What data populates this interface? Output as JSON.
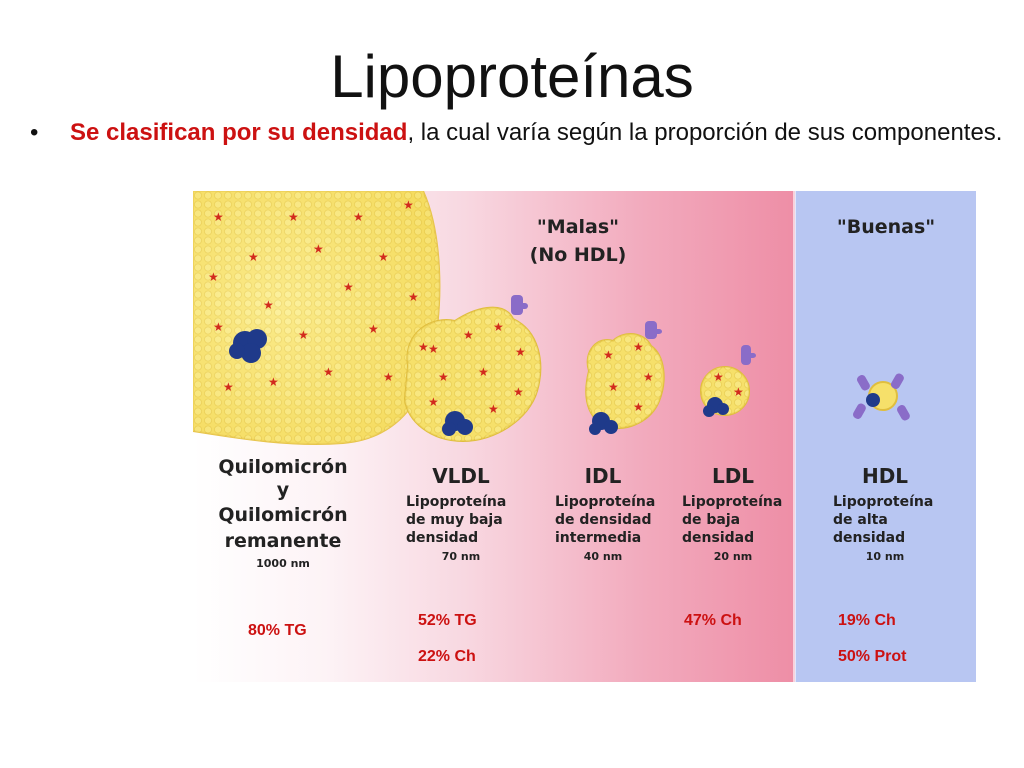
{
  "slide": {
    "title": "Lipoproteínas",
    "bullet_marker": "•",
    "bullet_bold": "Se clasifican por su densidad",
    "bullet_rest": ", la cual varía según la proporción de sus componentes."
  },
  "figure": {
    "header_bad_line1": "\"Malas\"",
    "header_bad_line2": "(No HDL)",
    "header_good": "\"Buenas\"",
    "quilo": {
      "line1": "Quilomicrón",
      "line2": "y",
      "line3": "Quilomicrón",
      "line4": "remanente",
      "size": "1000 nm"
    },
    "vldl": {
      "name": "VLDL",
      "line1": "Lipoproteína",
      "line2": "de muy baja",
      "line3": "densidad",
      "size": "70 nm"
    },
    "idl": {
      "name": "IDL",
      "line1": "Lipoproteína",
      "line2": "de densidad",
      "line3": "intermedia",
      "size": "40 nm"
    },
    "ldl": {
      "name": "LDL",
      "line1": "Lipoproteína",
      "line2": "de baja",
      "line3": "densidad",
      "size": "20 nm"
    },
    "hdl": {
      "name": "HDL",
      "line1": "Lipoproteína",
      "line2": "de alta",
      "line3": "densidad",
      "size": "10 nm"
    },
    "notes": {
      "quilo_tg": "80% TG",
      "vldl_tg": "52%  TG",
      "vldl_ch": "22% Ch",
      "ldl_ch": "47% Ch",
      "hdl_ch": "19% Ch",
      "hdl_prot": "50% Prot"
    }
  },
  "colors": {
    "accent_red": "#cc1111",
    "hdl_blue": "#b8c6f2",
    "particle_yellow": "#f6e06a",
    "core_blue": "#1f3a8a",
    "apo_purple": "#8a6cc8"
  }
}
